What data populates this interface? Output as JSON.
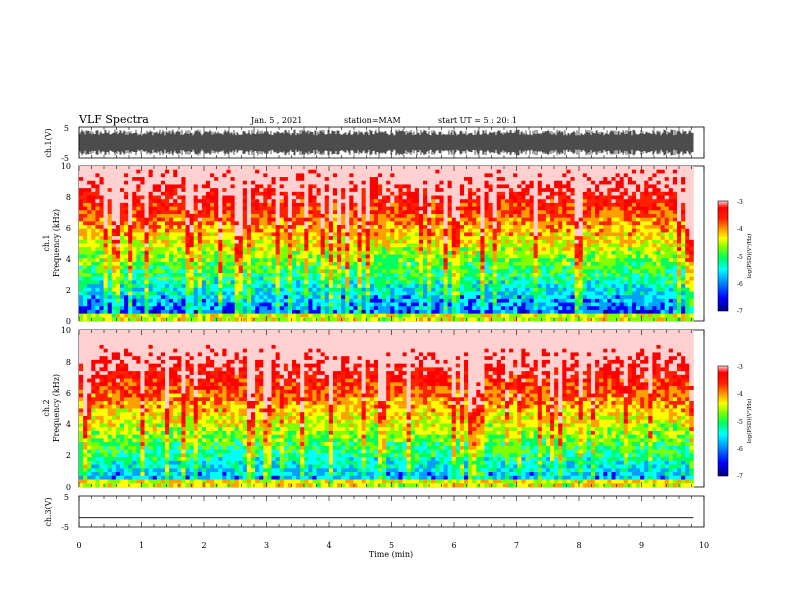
{
  "header": {
    "title": "VLF Spectra",
    "date": "Jan. 5 , 2021",
    "station": "station=MAM",
    "start": "start UT = 5 : 20: 1"
  },
  "chart_data": [
    {
      "type": "line",
      "panel": "ch1-waveform",
      "ylabel": "ch.1(V)",
      "ylim": [
        -5,
        5
      ],
      "y_ticks": [
        "5",
        "-5"
      ],
      "description_signal": "dense noise saturating approximately ±4 V"
    },
    {
      "type": "heatmap",
      "panel": "ch1-spectrogram",
      "ylabel_lines": [
        "ch.1",
        "Frequency (kHz)"
      ],
      "ylim": [
        0,
        10
      ],
      "y_ticks": [
        "0",
        "2",
        "4",
        "6",
        "8",
        "10"
      ],
      "colorbar": {
        "label": "log(PSD)(V²/Hz)",
        "range": [
          -7,
          -3
        ],
        "ticks": [
          "-3",
          "-4",
          "-5",
          "-6",
          "-7"
        ]
      }
    },
    {
      "type": "heatmap",
      "panel": "ch2-spectrogram",
      "ylabel_lines": [
        "ch.2",
        "Frequency (kHz)"
      ],
      "ylim": [
        0,
        10
      ],
      "y_ticks": [
        "0",
        "2",
        "4",
        "6",
        "8",
        "10"
      ],
      "colorbar": {
        "label": "log(PSD)(V²/Hz)",
        "range": [
          -7,
          -3
        ],
        "ticks": [
          "-3",
          "-4",
          "-5",
          "-6",
          "-7"
        ]
      }
    },
    {
      "type": "line",
      "panel": "ch3-waveform",
      "ylabel": "ch.3(V)",
      "ylim": [
        -5,
        5
      ],
      "y_ticks": [
        "5",
        "-5"
      ],
      "flat_value": -2
    }
  ],
  "x_axis": {
    "label": "Time (min)",
    "range": [
      0,
      10
    ],
    "data_end": 9.83,
    "ticks": [
      "0",
      "1",
      "2",
      "3",
      "4",
      "5",
      "6",
      "7",
      "8",
      "9",
      "10"
    ]
  },
  "colormap": [
    "#000080",
    "#0000ff",
    "#00a0ff",
    "#00ffff",
    "#00ff60",
    "#80ff00",
    "#ffff00",
    "#ffa000",
    "#ff2000",
    "#ff0000",
    "#ffd0d0"
  ]
}
